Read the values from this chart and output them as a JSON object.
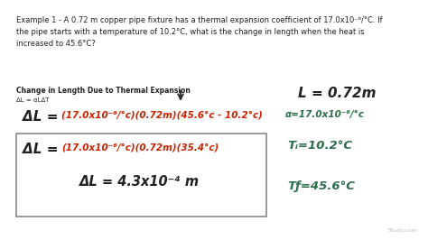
{
  "bg_color": "#ffffff",
  "title_text": "Example 1 - A 0.72 m copper pipe fixture has a thermal expansion coefficient of 17.0x10⁻⁶/°C. If\nthe pipe starts with a temperature of 10.2°C, what is the change in length when the heat is\nincreased to 45.6°C?",
  "subtitle": "Change in Length Due to Thermal Expansion",
  "formula_base": "ΔL = αLΔT",
  "right_L": "L = 0.72m",
  "right_alpha": "α=17.0x10⁻⁶/°c",
  "right_Ti": "Tᵢ=10.2°C",
  "right_Tf": "Tƒ=45.6°C",
  "watermark": "Study.com",
  "text_color": "#222222",
  "red_color": "#cc2200",
  "green_color": "#2a6e4a",
  "box_color": "#888888"
}
